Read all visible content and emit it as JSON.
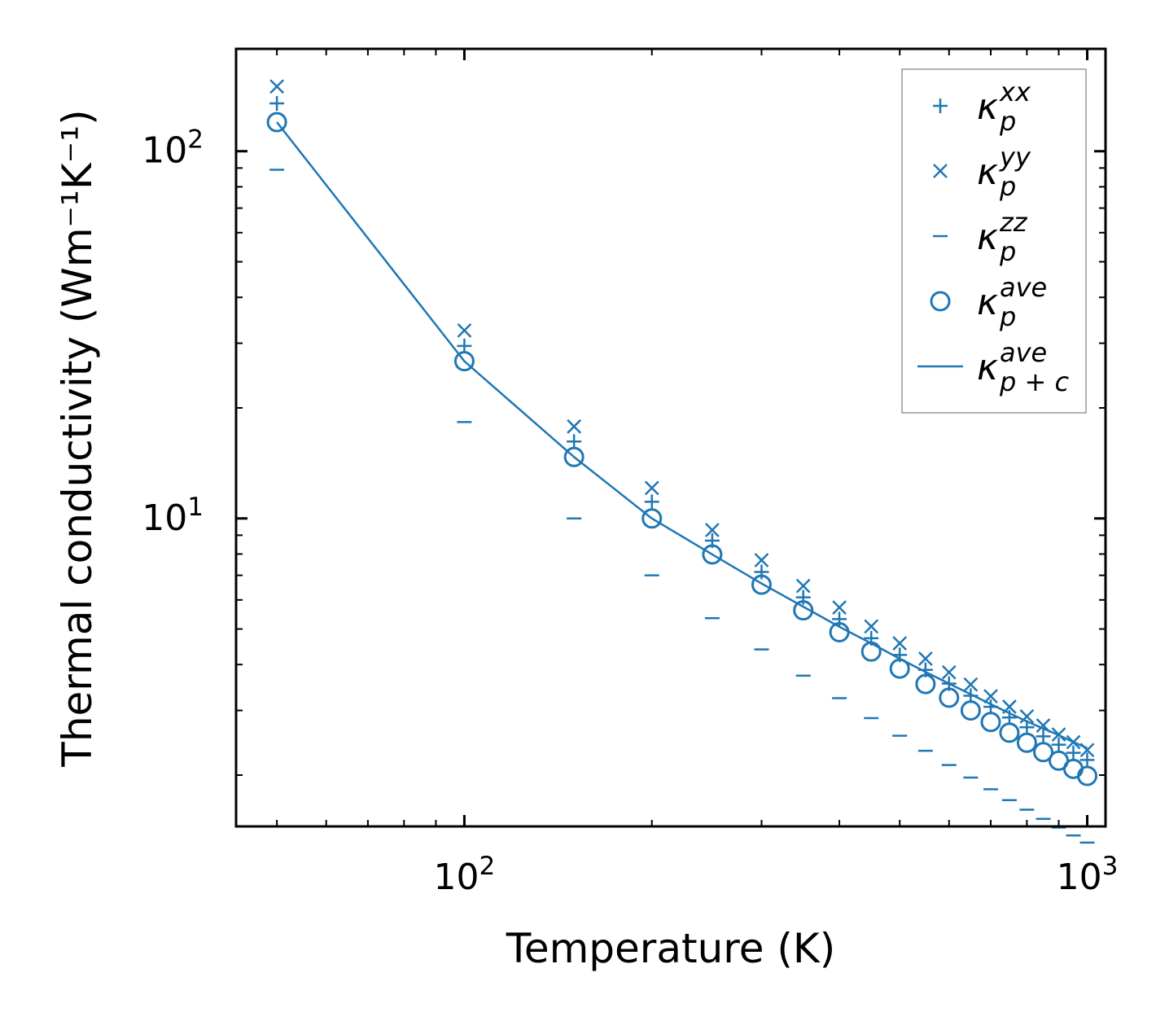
{
  "chart_data": {
    "type": "scatter",
    "xscale": "log",
    "yscale": "log",
    "xlabel": "Temperature (K)",
    "ylabel": "Thermal conductivity (Wm⁻¹K⁻¹)",
    "xlim": [
      43,
      1070
    ],
    "ylim": [
      1.45,
      190
    ],
    "x_tick_labels": [
      {
        "value": 100,
        "label": "10",
        "exp": "2"
      },
      {
        "value": 1000,
        "label": "10",
        "exp": "3"
      }
    ],
    "y_tick_labels": [
      {
        "value": 10,
        "label": "10",
        "exp": "1"
      },
      {
        "value": 100,
        "label": "10",
        "exp": "2"
      }
    ],
    "color": "#1f77b4",
    "x": [
      50,
      100,
      150,
      200,
      250,
      300,
      350,
      400,
      450,
      500,
      550,
      600,
      650,
      700,
      750,
      800,
      850,
      900,
      950,
      1000
    ],
    "series": [
      {
        "name": "kxx",
        "label": "κ",
        "sub": "p",
        "sup": "xx",
        "marker": "plus",
        "values": [
          135,
          29.5,
          16.2,
          11.1,
          8.7,
          7.15,
          6.1,
          5.32,
          4.72,
          4.25,
          3.87,
          3.55,
          3.29,
          3.07,
          2.87,
          2.7,
          2.55,
          2.42,
          2.3,
          2.2
        ]
      },
      {
        "name": "kyy",
        "label": "κ",
        "sub": "p",
        "sup": "yy",
        "marker": "x",
        "values": [
          150,
          32.5,
          17.8,
          12.1,
          9.3,
          7.7,
          6.55,
          5.72,
          5.08,
          4.57,
          4.15,
          3.81,
          3.53,
          3.28,
          3.07,
          2.89,
          2.73,
          2.58,
          2.46,
          2.34
        ]
      },
      {
        "name": "kzz",
        "label": "κ",
        "sub": "p",
        "sup": "zz",
        "marker": "hline",
        "values": [
          89,
          18.3,
          10.0,
          7.0,
          5.35,
          4.4,
          3.73,
          3.24,
          2.86,
          2.56,
          2.33,
          2.13,
          1.97,
          1.83,
          1.71,
          1.61,
          1.52,
          1.44,
          1.37,
          1.31
        ]
      },
      {
        "name": "kave",
        "label": "κ",
        "sub": "p",
        "sup": "ave",
        "marker": "circle",
        "values": [
          120,
          26.8,
          14.7,
          10.0,
          7.98,
          6.6,
          5.62,
          4.9,
          4.34,
          3.9,
          3.54,
          3.25,
          3.0,
          2.79,
          2.61,
          2.45,
          2.31,
          2.19,
          2.08,
          1.99
        ]
      },
      {
        "name": "kpc",
        "label": "κ",
        "sub": "p + c",
        "sup": "ave",
        "marker": "line",
        "values": [
          120,
          26.8,
          14.7,
          10.0,
          7.98,
          6.65,
          5.75,
          5.07,
          4.57,
          4.15,
          3.82,
          3.55,
          3.32,
          3.12,
          2.95,
          2.8,
          2.68,
          2.57,
          2.46,
          2.37
        ]
      }
    ],
    "legend_position": "top-right"
  }
}
